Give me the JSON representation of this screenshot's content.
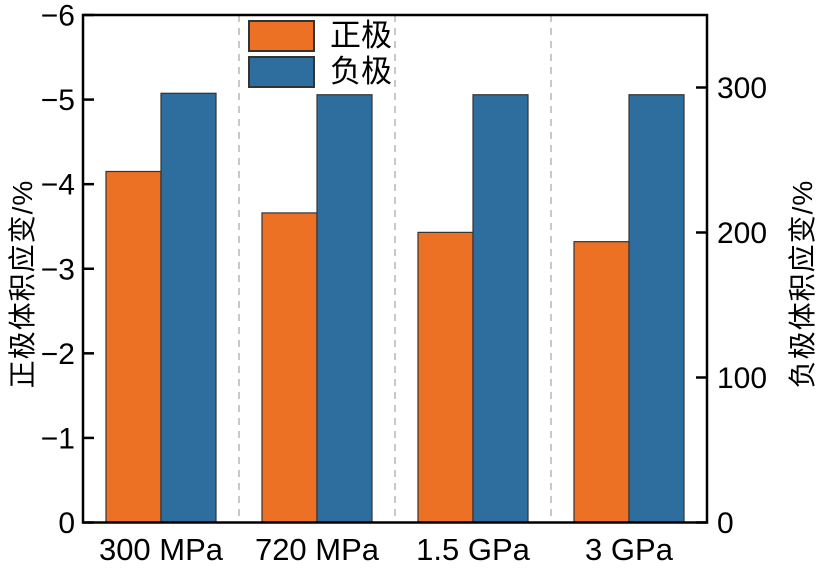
{
  "chart_data": {
    "type": "bar",
    "title": "",
    "categories": [
      "300 MPa",
      "720 MPa",
      "1.5 GPa",
      "3 GPa"
    ],
    "series": [
      {
        "name": "正极",
        "axis": "left",
        "color": "#ED7125",
        "values": [
          -4.15,
          -3.66,
          -3.43,
          -3.32
        ]
      },
      {
        "name": "负极",
        "axis": "right",
        "color": "#2E6E9E",
        "values": [
          296,
          295,
          295,
          295
        ]
      }
    ],
    "left_axis": {
      "label": "正极体积应变/%",
      "tick_values": [
        0,
        -1,
        -2,
        -3,
        -4,
        -5,
        -6
      ],
      "tick_labels": [
        "0",
        "−1",
        "−2",
        "−3",
        "−4",
        "−5",
        "−6"
      ],
      "range": [
        0,
        -6
      ]
    },
    "right_axis": {
      "label": "负极体积应变/%",
      "tick_values": [
        0,
        100,
        200,
        300
      ],
      "tick_labels": [
        "0",
        "100",
        "200",
        "300"
      ],
      "range": [
        0,
        350
      ]
    },
    "legend_position": "top-center",
    "grid": {
      "vertical_dashed_separators": true,
      "separator_color": "#C9C9C9"
    }
  },
  "legend": {
    "items": [
      {
        "label": "正极",
        "color": "#ED7125"
      },
      {
        "label": "负极",
        "color": "#2E6E9E"
      }
    ]
  },
  "colors": {
    "positive_bar": "#ED7125",
    "negative_bar": "#2E6E9E",
    "bar_edge": "#333333",
    "spine": "#000000",
    "separator": "#C9C9C9",
    "text": "#000000"
  }
}
